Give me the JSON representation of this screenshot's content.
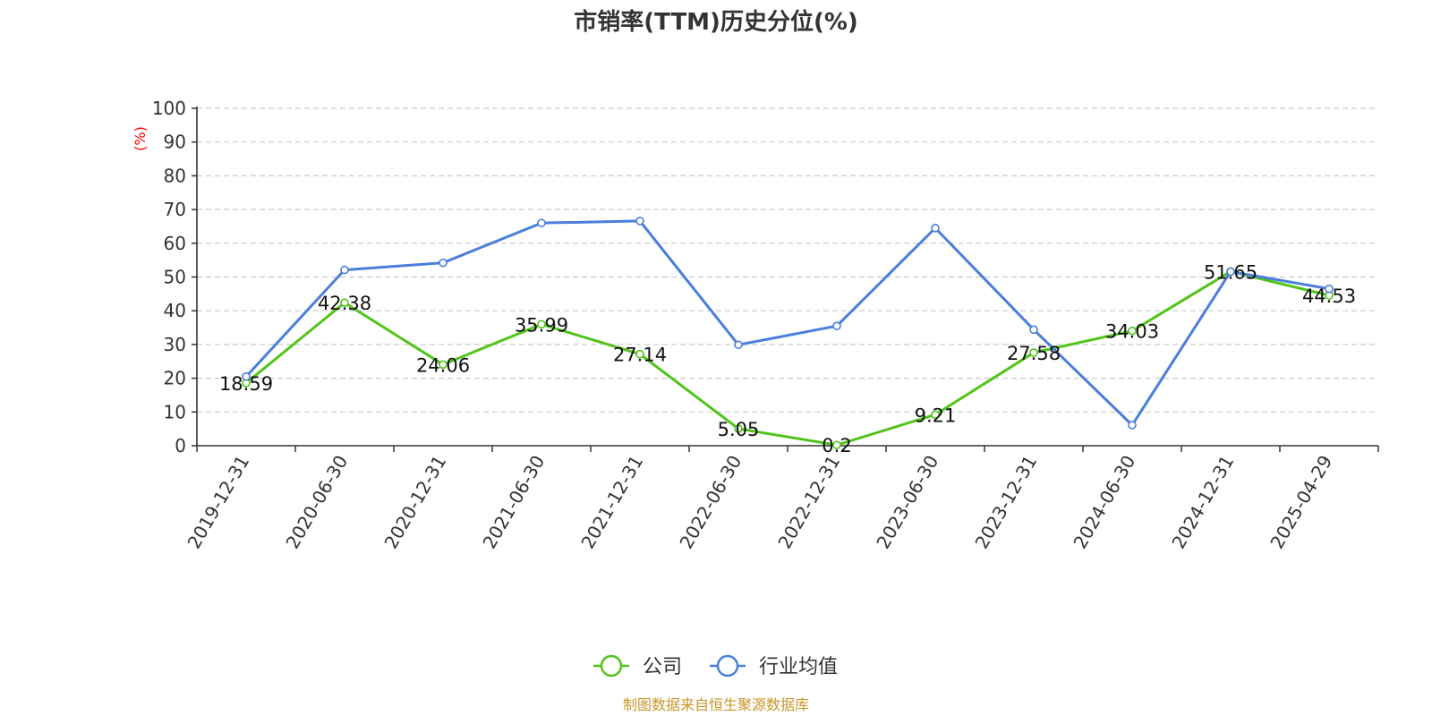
{
  "chart_data": {
    "type": "line",
    "title": "市销率(TTM)历史分位(%)",
    "y_unit_label": "(%)",
    "categories": [
      "2019-12-31",
      "2020-06-30",
      "2020-12-31",
      "2021-06-30",
      "2021-12-31",
      "2022-06-30",
      "2022-12-31",
      "2023-06-30",
      "2023-12-31",
      "2024-06-30",
      "2024-12-31",
      "2025-04-29"
    ],
    "ylim": [
      0,
      100
    ],
    "y_ticks": [
      0,
      10,
      20,
      30,
      40,
      50,
      60,
      70,
      80,
      90,
      100
    ],
    "grid": true,
    "legend_position": "bottom-center",
    "series": [
      {
        "name": "公司",
        "color": "#52c41a",
        "values": [
          18.59,
          42.38,
          24.06,
          35.99,
          27.14,
          5.05,
          0.2,
          9.21,
          27.58,
          34.03,
          51.65,
          44.53
        ],
        "labels": [
          "18.59",
          "42.38",
          "24.06",
          "35.99",
          "27.14",
          "5.05",
          "0.2",
          "9.21",
          "27.58",
          "34.03",
          "51.65",
          "44.53"
        ]
      },
      {
        "name": "行业均值",
        "color": "#4a7fdc",
        "values": [
          20.5,
          52.1,
          54.2,
          66.0,
          66.6,
          29.9,
          35.5,
          64.5,
          34.4,
          6.1,
          51.6,
          46.5
        ]
      }
    ]
  },
  "source": "制图数据来自恒生聚源数据库"
}
